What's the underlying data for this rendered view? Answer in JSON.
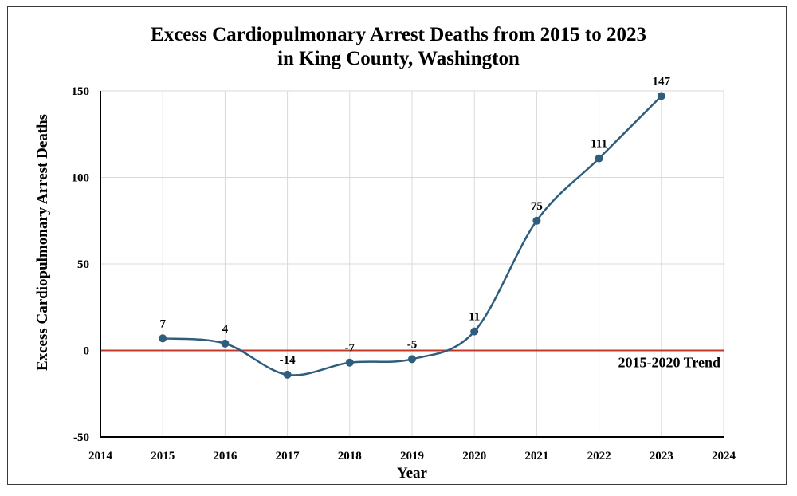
{
  "chart_data": {
    "type": "line",
    "title_line1": "Excess Cardiopulmonary Arrest Deaths from 2015 to 2023",
    "title_line2": "in King County, Washington",
    "xlabel": "Year",
    "ylabel": "Excess Cardiopulmonary Arrest Deaths",
    "xlim": [
      2014,
      2024
    ],
    "ylim": [
      -50,
      150
    ],
    "x_ticks": [
      2014,
      2015,
      2016,
      2017,
      2018,
      2019,
      2020,
      2021,
      2022,
      2023,
      2024
    ],
    "y_ticks": [
      -50,
      0,
      50,
      100,
      150
    ],
    "grid": true,
    "smooth": true,
    "series": [
      {
        "x": [
          2015,
          2016,
          2017,
          2018,
          2019,
          2020,
          2021,
          2022,
          2023
        ],
        "values": [
          7,
          4,
          -14,
          -7,
          -5,
          11,
          75,
          111,
          147
        ],
        "data_labels": [
          "7",
          "4",
          "-14",
          "-7",
          "-5",
          "11",
          "75",
          "111",
          "147"
        ],
        "color": "#2f5d7e"
      }
    ],
    "reference_line": {
      "y": 0,
      "label": "2015-2020 Trend",
      "color": "#c0392b"
    }
  }
}
